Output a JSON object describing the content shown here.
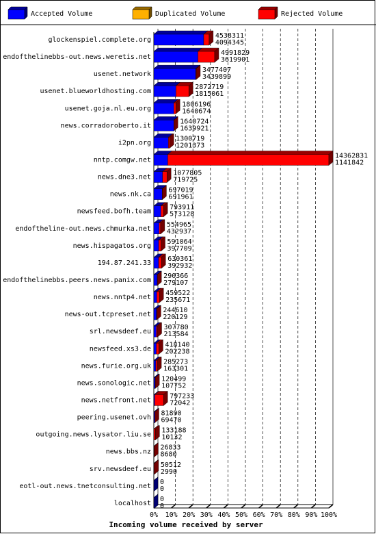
{
  "chart_data": {
    "type": "bar3d-stacked-horizontal",
    "xlabel": "Incoming volume received by server",
    "categories": [
      "glockenspiel.complete.org",
      "endofthelinebbs-out.news.weretis.net",
      "usenet.network",
      "usenet.blueworldhosting.com",
      "usenet.goja.nl.eu.org",
      "news.corradoroberto.it",
      "i2pn.org",
      "nntp.comgw.net",
      "news.dne3.net",
      "news.nk.ca",
      "newsfeed.bofh.team",
      "endoftheline-out.news.chmurka.net",
      "news.hispagatos.org",
      "194.87.241.33",
      "endofthelinebbs.peers.news.panix.com",
      "news.nntp4.net",
      "news-out.tcpreset.net",
      "srl.newsdeef.eu",
      "newsfeed.xs3.de",
      "news.furie.org.uk",
      "news.sonologic.net",
      "news.netfront.net",
      "peering.usenet.ovh",
      "outgoing.news.lysator.liu.se",
      "news.bbs.nz",
      "srv.newsdeef.eu",
      "eotl-out.news.tnetconsulting.net",
      "localhost"
    ],
    "totals": [
      4538311,
      4991829,
      3477407,
      2872719,
      1806196,
      1640724,
      1300719,
      14362831,
      1077805,
      697019,
      793911,
      554965,
      591064,
      630361,
      290366,
      459522,
      244610,
      307780,
      418140,
      285273,
      120499,
      797233,
      81890,
      133188,
      26833,
      50512,
      0,
      0
    ],
    "series": [
      {
        "name": "Accepted Volume",
        "color": "#0000ff",
        "values": [
          4094345,
          3619901,
          3439899,
          1815061,
          1640674,
          1639921,
          1201373,
          1141842,
          719725,
          691961,
          573128,
          432937,
          397709,
          392932,
          279107,
          235671,
          220129,
          213584,
          202238,
          163301,
          107752,
          72042,
          69470,
          10132,
          8680,
          2990,
          0,
          0
        ]
      },
      {
        "name": "Duplicated Volume",
        "color": "#ffb000",
        "values": [
          0,
          0,
          0,
          0,
          0,
          0,
          0,
          0,
          0,
          0,
          0,
          0,
          0,
          0,
          0,
          0,
          0,
          0,
          0,
          0,
          0,
          0,
          0,
          0,
          0,
          0,
          0,
          0
        ]
      },
      {
        "name": "Rejected Volume",
        "color": "#ff0000",
        "values": [
          443966,
          1371928,
          37508,
          1057658,
          165522,
          803,
          99346,
          13220989,
          358080,
          5058,
          220783,
          122028,
          193355,
          237429,
          11259,
          223851,
          24481,
          94196,
          215902,
          121972,
          12747,
          725191,
          12420,
          123056,
          18153,
          47522,
          0,
          0
        ]
      }
    ],
    "xlim": [
      0,
      100
    ],
    "xticks": [
      {
        "value": 0,
        "label": "0%"
      },
      {
        "value": 10,
        "label": "10%"
      },
      {
        "value": 20,
        "label": "20%"
      },
      {
        "value": 30,
        "label": "30%"
      },
      {
        "value": 40,
        "label": "40%"
      },
      {
        "value": 50,
        "label": "50%"
      },
      {
        "value": 60,
        "label": "60%"
      },
      {
        "value": 70,
        "label": "70%"
      },
      {
        "value": 80,
        "label": "80%"
      },
      {
        "value": 90,
        "label": "90%"
      },
      {
        "value": 100,
        "label": "100%"
      }
    ],
    "grid": true
  }
}
